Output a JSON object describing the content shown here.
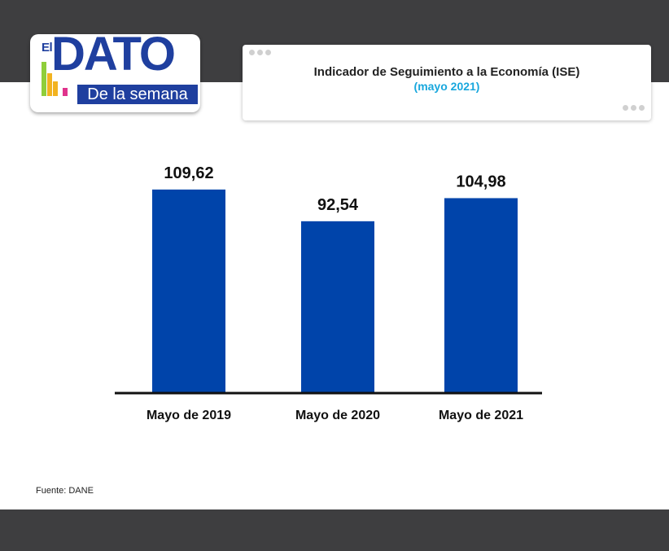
{
  "logo": {
    "el": "El",
    "dato": "DATO",
    "subtitle": "De la semana"
  },
  "header": {
    "title": "Indicador de Seguimiento a la Economía (ISE)",
    "subtitle": "(mayo 2021)"
  },
  "chart_data": {
    "type": "bar",
    "categories": [
      "Mayo de 2019",
      "Mayo de 2020",
      "Mayo de 2021"
    ],
    "values": [
      109.62,
      92.54,
      104.98
    ],
    "value_labels": [
      "109,62",
      "92,54",
      "104,98"
    ],
    "title": "",
    "xlabel": "",
    "ylabel": "",
    "ylim": [
      0,
      110
    ],
    "grid": false,
    "legend": "none",
    "bar_color": "#0044aa",
    "axis_color": "#111111"
  },
  "footer": {
    "source": "Fuente: DANE"
  },
  "colors": {
    "band": "#3e3e40",
    "brand_blue": "#1f3f9f",
    "accent_cyan": "#18a7dd"
  }
}
